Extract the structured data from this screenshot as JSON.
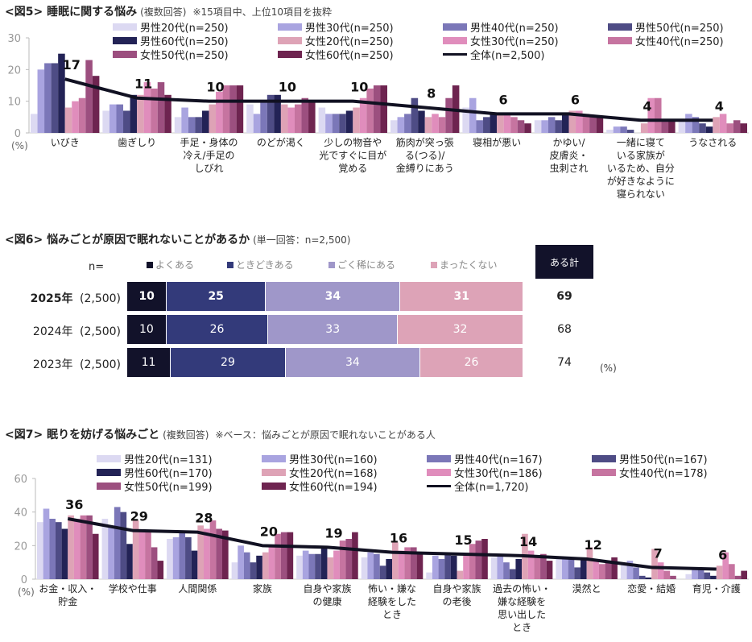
{
  "fig5": {
    "title": "<図5> 睡眠に関する悩み",
    "subtitle": "(複数回答)",
    "note": "※15項目中、上位10項目を抜粋"
  },
  "fig6": {
    "title": "<図6> 悩みごとが原因で眠れないことがあるか",
    "subtitle": "(単一回答：n=2,500)",
    "n_label": "n=",
    "total_header": "ある計",
    "unit": "(%)"
  },
  "fig7": {
    "title": "<図7> 眠りを妨げる悩みごと",
    "subtitle": "(複数回答)",
    "note": "※ベース：悩みごとが原因で眠れないことがある人"
  },
  "colors": {
    "m20": "#dcd9f2",
    "m30": "#a9a4e0",
    "m40": "#7b77b8",
    "m50": "#4e4c85",
    "m60": "#232356",
    "f20": "#dea3b6",
    "f30": "#e08dbc",
    "f40": "#c674a0",
    "f50": "#9c4f7f",
    "f60": "#6e2450",
    "total": "#111122",
    "yoku": "#12122a",
    "tokidoki": "#333a7a",
    "gokumare": "#9f97c9",
    "mattaku": "#dda3b7"
  },
  "chart_data": [
    {
      "id": "fig5",
      "type": "bar",
      "title": "<図5> 睡眠に関する悩み (複数回答) ※15項目中、上位10項目を抜粋",
      "xlabel": "",
      "ylabel": "(%)",
      "ylim": [
        0,
        30
      ],
      "yticks": [
        0,
        10,
        20,
        30
      ],
      "legend_position": "top",
      "categories": [
        "いびき",
        "歯ぎしり",
        "手足・身体の\n冷え/手足の\nしびれ",
        "のどが渇く",
        "少しの物音や\n光ですぐに目が\n覚める",
        "筋肉が突っ張\nる(つる)/\n金縛りにあう",
        "寝相が悪い",
        "かゆい/\n皮膚炎・\n虫刺され",
        "一緒に寝て\nいる家族が\nいるため、自分\nが好きなように\n寝られない",
        "うなされる"
      ],
      "series": [
        {
          "name": "男性20代(n=250)",
          "key": "m20",
          "values": [
            6,
            7,
            5,
            9,
            8,
            4,
            8,
            4,
            1,
            4
          ]
        },
        {
          "name": "男性30代(n=250)",
          "key": "m30",
          "values": [
            20,
            9,
            8,
            6,
            6,
            5,
            11,
            4,
            2,
            6
          ]
        },
        {
          "name": "男性40代(n=250)",
          "key": "m40",
          "values": [
            22,
            9,
            5,
            10,
            6,
            6,
            4,
            5,
            2,
            5
          ]
        },
        {
          "name": "男性50代(n=250)",
          "key": "m50",
          "values": [
            22,
            7,
            5,
            12,
            6,
            11,
            5,
            4,
            1,
            3
          ]
        },
        {
          "name": "男性60代(n=250)",
          "key": "m60",
          "values": [
            25,
            12,
            7,
            12,
            7,
            7,
            6,
            6,
            0,
            2
          ]
        },
        {
          "name": "女性20代(n=250)",
          "key": "f20",
          "values": [
            8,
            12,
            9,
            9,
            8,
            5,
            6,
            7,
            3,
            5
          ]
        },
        {
          "name": "女性30代(n=250)",
          "key": "f30",
          "values": [
            10,
            16,
            13,
            8,
            11,
            6,
            6,
            7,
            11,
            6
          ]
        },
        {
          "name": "女性40代(n=250)",
          "key": "f40",
          "values": [
            11,
            14,
            15,
            9,
            14,
            5,
            5,
            6,
            11,
            3
          ]
        },
        {
          "name": "女性50代(n=250)",
          "key": "f50",
          "values": [
            23,
            16,
            15,
            11,
            15,
            11,
            4,
            5,
            4,
            4
          ]
        },
        {
          "name": "女性60代(n=250)",
          "key": "f60",
          "values": [
            18,
            12,
            15,
            10,
            15,
            15,
            3,
            5,
            4,
            3
          ]
        }
      ],
      "line": {
        "name": "全体(n=2,500)",
        "key": "total",
        "values": [
          17,
          11,
          10,
          10,
          10,
          8,
          6,
          6,
          4,
          4
        ]
      }
    },
    {
      "id": "fig6",
      "type": "bar",
      "orientation": "horizontal-stacked",
      "title": "<図6> 悩みごとが原因で眠れないことがあるか (単一回答：n=2,500)",
      "unit": "(%)",
      "legend_position": "top",
      "segments": [
        {
          "name": "よくある",
          "key": "yoku"
        },
        {
          "name": "ときどきある",
          "key": "tokidoki"
        },
        {
          "name": "ごく稀にある",
          "key": "gokumare"
        },
        {
          "name": "まったくない",
          "key": "mattaku"
        }
      ],
      "rows": [
        {
          "year": "2025年",
          "n": "(2,500)",
          "values": [
            10,
            25,
            34,
            31
          ],
          "total": 69,
          "bold": true
        },
        {
          "year": "2024年",
          "n": "(2,500)",
          "values": [
            10,
            26,
            33,
            32
          ],
          "total": 68,
          "bold": false
        },
        {
          "year": "2023年",
          "n": "(2,500)",
          "values": [
            11,
            29,
            34,
            26
          ],
          "total": 74,
          "bold": false
        }
      ],
      "total_header": "ある計"
    },
    {
      "id": "fig7",
      "type": "bar",
      "title": "<図7> 眠りを妨げる悩みごと (複数回答) ※ベース：悩みごとが原因で眠れないことがある人",
      "xlabel": "",
      "ylabel": "(%)",
      "ylim": [
        0,
        60
      ],
      "yticks": [
        0,
        20,
        40,
        60
      ],
      "legend_position": "top",
      "categories": [
        "お金・収入・\n貯金",
        "学校や仕事",
        "人間関係",
        "家族",
        "自身や家族\nの健康",
        "怖い・嫌な\n経験をした\nとき",
        "自身や家族\nの老後",
        "過去の怖い・\n嫌な経験を\n思い出した\nとき",
        "漠然と",
        "恋愛・結婚",
        "育児・介護"
      ],
      "series": [
        {
          "name": "男性20代(n=131)",
          "key": "m20",
          "values": [
            34,
            36,
            24,
            10,
            14,
            13,
            4,
            13,
            13,
            9,
            3
          ]
        },
        {
          "name": "男性30代(n=160)",
          "key": "m30",
          "values": [
            42,
            32,
            25,
            20,
            17,
            16,
            14,
            14,
            13,
            11,
            6
          ]
        },
        {
          "name": "男性40代(n=167)",
          "key": "m40",
          "values": [
            36,
            43,
            28,
            16,
            15,
            15,
            12,
            10,
            13,
            7,
            6
          ]
        },
        {
          "name": "男性50代(n=167)",
          "key": "m50",
          "values": [
            34,
            40,
            25,
            10,
            15,
            8,
            15,
            6,
            7,
            2,
            4
          ]
        },
        {
          "name": "男性60代(n=170)",
          "key": "m60",
          "values": [
            30,
            21,
            17,
            14,
            19,
            12,
            14,
            12,
            13,
            1,
            2
          ]
        },
        {
          "name": "女性20代(n=168)",
          "key": "f20",
          "values": [
            38,
            35,
            32,
            16,
            13,
            22,
            5,
            27,
            19,
            18,
            8
          ]
        },
        {
          "name": "女性30代(n=186)",
          "key": "f30",
          "values": [
            36,
            29,
            30,
            19,
            17,
            17,
            14,
            17,
            11,
            10,
            16
          ]
        },
        {
          "name": "女性40代(n=178)",
          "key": "f40",
          "values": [
            38,
            29,
            35,
            27,
            23,
            19,
            21,
            14,
            9,
            5,
            9
          ]
        },
        {
          "name": "女性50代(n=199)",
          "key": "f50",
          "values": [
            38,
            19,
            30,
            28,
            24,
            19,
            23,
            15,
            10,
            2,
            2
          ]
        },
        {
          "name": "女性60代(n=194)",
          "key": "f60",
          "values": [
            27,
            11,
            29,
            28,
            28,
            16,
            24,
            11,
            13,
            0,
            5
          ]
        }
      ],
      "line": {
        "name": "全体(n=1,720)",
        "key": "total",
        "values": [
          36,
          29,
          28,
          20,
          19,
          16,
          15,
          14,
          12,
          7,
          6
        ]
      }
    }
  ]
}
